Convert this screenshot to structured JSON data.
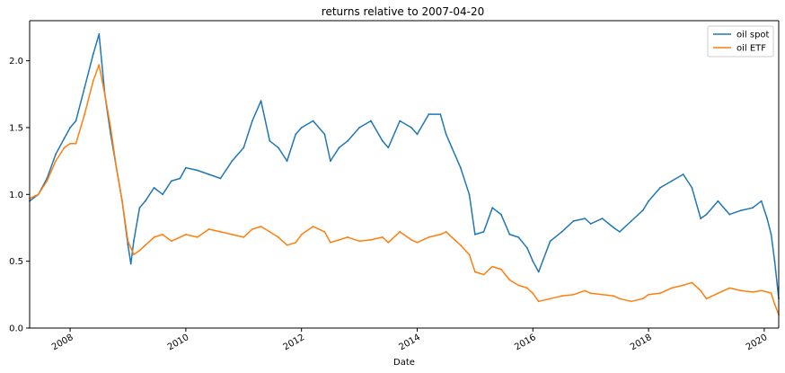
{
  "chart_data": {
    "type": "line",
    "title": "returns relative to 2007-04-20",
    "xlabel": "Date",
    "ylabel": "",
    "xlim": [
      2007.3,
      2020.25
    ],
    "ylim": [
      0.0,
      2.3
    ],
    "grid": false,
    "legend_position": "upper right",
    "x_ticks": [
      2008,
      2010,
      2012,
      2014,
      2016,
      2018,
      2020
    ],
    "x_tick_labels": [
      "2008",
      "2010",
      "2012",
      "2014",
      "2016",
      "2018",
      "2020"
    ],
    "y_ticks": [
      0.0,
      0.5,
      1.0,
      1.5,
      2.0
    ],
    "y_tick_labels": [
      "0.0",
      "0.5",
      "1.0",
      "1.5",
      "2.0"
    ],
    "series": [
      {
        "name": "oil spot",
        "color": "#1f77b4",
        "x": [
          2007.3,
          2007.45,
          2007.6,
          2007.75,
          2007.9,
          2008.0,
          2008.1,
          2008.25,
          2008.4,
          2008.5,
          2008.6,
          2008.7,
          2008.8,
          2008.9,
          2009.0,
          2009.05,
          2009.1,
          2009.2,
          2009.3,
          2009.45,
          2009.6,
          2009.75,
          2009.9,
          2010.0,
          2010.2,
          2010.4,
          2010.6,
          2010.8,
          2011.0,
          2011.15,
          2011.3,
          2011.45,
          2011.6,
          2011.75,
          2011.9,
          2012.0,
          2012.2,
          2012.4,
          2012.5,
          2012.65,
          2012.8,
          2013.0,
          2013.2,
          2013.4,
          2013.5,
          2013.7,
          2013.9,
          2014.0,
          2014.2,
          2014.4,
          2014.5,
          2014.6,
          2014.75,
          2014.9,
          2015.0,
          2015.15,
          2015.3,
          2015.45,
          2015.6,
          2015.75,
          2015.9,
          2016.0,
          2016.1,
          2016.3,
          2016.5,
          2016.7,
          2016.9,
          2017.0,
          2017.2,
          2017.4,
          2017.5,
          2017.7,
          2017.9,
          2018.0,
          2018.2,
          2018.4,
          2018.6,
          2018.75,
          2018.9,
          2019.0,
          2019.2,
          2019.4,
          2019.6,
          2019.8,
          2019.95,
          2020.05,
          2020.12,
          2020.18,
          2020.25
        ],
        "y": [
          0.95,
          1.0,
          1.12,
          1.3,
          1.42,
          1.5,
          1.55,
          1.8,
          2.05,
          2.2,
          1.75,
          1.45,
          1.2,
          0.95,
          0.62,
          0.48,
          0.65,
          0.9,
          0.95,
          1.05,
          1.0,
          1.1,
          1.12,
          1.2,
          1.18,
          1.15,
          1.12,
          1.25,
          1.35,
          1.55,
          1.7,
          1.4,
          1.35,
          1.25,
          1.45,
          1.5,
          1.55,
          1.45,
          1.25,
          1.35,
          1.4,
          1.5,
          1.55,
          1.4,
          1.35,
          1.55,
          1.5,
          1.45,
          1.6,
          1.6,
          1.45,
          1.35,
          1.2,
          1.0,
          0.7,
          0.72,
          0.9,
          0.85,
          0.7,
          0.68,
          0.6,
          0.5,
          0.42,
          0.65,
          0.72,
          0.8,
          0.82,
          0.78,
          0.82,
          0.75,
          0.72,
          0.8,
          0.88,
          0.95,
          1.05,
          1.1,
          1.15,
          1.05,
          0.82,
          0.85,
          0.95,
          0.85,
          0.88,
          0.9,
          0.95,
          0.82,
          0.7,
          0.5,
          0.22
        ]
      },
      {
        "name": "oil ETF",
        "color": "#ff7f0e",
        "x": [
          2007.3,
          2007.45,
          2007.6,
          2007.75,
          2007.9,
          2008.0,
          2008.1,
          2008.25,
          2008.4,
          2008.5,
          2008.6,
          2008.7,
          2008.8,
          2008.9,
          2009.0,
          2009.05,
          2009.1,
          2009.2,
          2009.3,
          2009.45,
          2009.6,
          2009.75,
          2009.9,
          2010.0,
          2010.2,
          2010.4,
          2010.6,
          2010.8,
          2011.0,
          2011.15,
          2011.3,
          2011.45,
          2011.6,
          2011.75,
          2011.9,
          2012.0,
          2012.2,
          2012.4,
          2012.5,
          2012.65,
          2012.8,
          2013.0,
          2013.2,
          2013.4,
          2013.5,
          2013.7,
          2013.9,
          2014.0,
          2014.2,
          2014.4,
          2014.5,
          2014.6,
          2014.75,
          2014.9,
          2015.0,
          2015.15,
          2015.3,
          2015.45,
          2015.6,
          2015.75,
          2015.9,
          2016.0,
          2016.1,
          2016.3,
          2016.5,
          2016.7,
          2016.9,
          2017.0,
          2017.2,
          2017.4,
          2017.5,
          2017.7,
          2017.9,
          2018.0,
          2018.2,
          2018.4,
          2018.6,
          2018.75,
          2018.9,
          2019.0,
          2019.2,
          2019.4,
          2019.6,
          2019.8,
          2019.95,
          2020.05,
          2020.12,
          2020.18,
          2020.25
        ],
        "y": [
          0.97,
          1.0,
          1.1,
          1.25,
          1.35,
          1.38,
          1.38,
          1.6,
          1.85,
          1.97,
          1.75,
          1.5,
          1.2,
          0.95,
          0.65,
          0.6,
          0.55,
          0.58,
          0.62,
          0.68,
          0.7,
          0.65,
          0.68,
          0.7,
          0.68,
          0.74,
          0.72,
          0.7,
          0.68,
          0.74,
          0.76,
          0.72,
          0.68,
          0.62,
          0.64,
          0.7,
          0.76,
          0.72,
          0.64,
          0.66,
          0.68,
          0.65,
          0.66,
          0.68,
          0.64,
          0.72,
          0.66,
          0.64,
          0.68,
          0.7,
          0.72,
          0.68,
          0.62,
          0.55,
          0.42,
          0.4,
          0.46,
          0.44,
          0.36,
          0.32,
          0.3,
          0.26,
          0.2,
          0.22,
          0.24,
          0.25,
          0.28,
          0.26,
          0.25,
          0.24,
          0.22,
          0.2,
          0.22,
          0.25,
          0.26,
          0.3,
          0.32,
          0.34,
          0.28,
          0.22,
          0.26,
          0.3,
          0.28,
          0.27,
          0.28,
          0.27,
          0.26,
          0.18,
          0.1
        ]
      }
    ]
  }
}
